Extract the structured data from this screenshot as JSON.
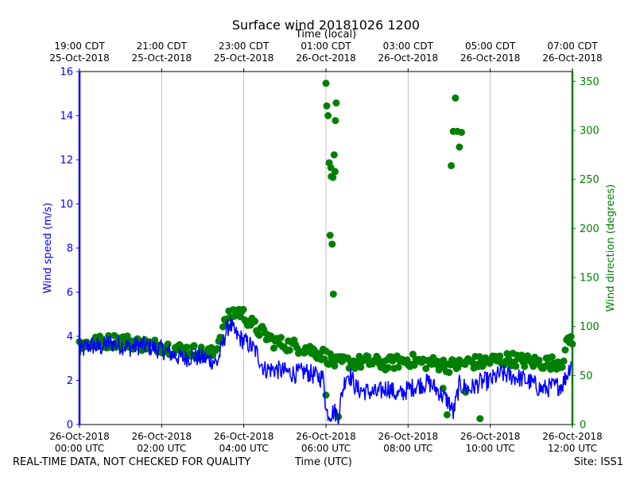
{
  "chart_data": {
    "type": "line+scatter",
    "title": "Surface wind 20181026 1200",
    "xlabel": "Time (UTC)",
    "top_axis_label": "Time (local)",
    "ylabel_left": "Wind speed (m/s)",
    "ylabel_right": "Wind direction (degrees)",
    "x_range_hours_utc": [
      0,
      12
    ],
    "ylim_left": [
      0,
      16
    ],
    "ylim_right": [
      0,
      360
    ],
    "grid": "vertical",
    "colors": {
      "speed": "#0000ff",
      "direction": "#008000",
      "grid": "#b0b0b0",
      "frame": "#000000"
    },
    "bottom_ticks": [
      {
        "hour": 0,
        "line1": "26-Oct-2018",
        "line2": "00:00 UTC"
      },
      {
        "hour": 2,
        "line1": "26-Oct-2018",
        "line2": "02:00 UTC"
      },
      {
        "hour": 4,
        "line1": "26-Oct-2018",
        "line2": "04:00 UTC"
      },
      {
        "hour": 6,
        "line1": "26-Oct-2018",
        "line2": "06:00 UTC"
      },
      {
        "hour": 8,
        "line1": "26-Oct-2018",
        "line2": "08:00 UTC"
      },
      {
        "hour": 10,
        "line1": "26-Oct-2018",
        "line2": "10:00 UTC"
      },
      {
        "hour": 12,
        "line1": "26-Oct-2018",
        "line2": "12:00 UTC"
      }
    ],
    "top_ticks": [
      {
        "hour": 0,
        "line1": "19:00 CDT",
        "line2": "25-Oct-2018"
      },
      {
        "hour": 2,
        "line1": "21:00 CDT",
        "line2": "25-Oct-2018"
      },
      {
        "hour": 4,
        "line1": "23:00 CDT",
        "line2": "25-Oct-2018"
      },
      {
        "hour": 6,
        "line1": "01:00 CDT",
        "line2": "26-Oct-2018"
      },
      {
        "hour": 8,
        "line1": "03:00 CDT",
        "line2": "26-Oct-2018"
      },
      {
        "hour": 10,
        "line1": "05:00 CDT",
        "line2": "26-Oct-2018"
      },
      {
        "hour": 12,
        "line1": "07:00 CDT",
        "line2": "26-Oct-2018"
      }
    ],
    "left_ticks": [
      0,
      2,
      4,
      6,
      8,
      10,
      12,
      14,
      16
    ],
    "right_ticks": [
      0,
      50,
      100,
      150,
      200,
      250,
      300,
      350
    ],
    "series": [
      {
        "name": "Wind speed (m/s)",
        "axis": "left",
        "style": "line",
        "x_hours": [
          0,
          0.25,
          0.5,
          0.75,
          1.0,
          1.25,
          1.5,
          1.75,
          2.0,
          2.25,
          2.5,
          2.75,
          3.0,
          3.25,
          3.35,
          3.45,
          3.55,
          3.65,
          3.75,
          3.85,
          4.0,
          4.15,
          4.3,
          4.5,
          4.75,
          5.0,
          5.25,
          5.5,
          5.75,
          5.95,
          6.0,
          6.1,
          6.2,
          6.3,
          6.4,
          6.5,
          6.6,
          6.75,
          7.0,
          7.25,
          7.5,
          7.75,
          8.0,
          8.25,
          8.5,
          8.75,
          9.0,
          9.1,
          9.25,
          9.5,
          9.75,
          10.0,
          10.25,
          10.5,
          10.75,
          11.0,
          11.25,
          11.5,
          11.75,
          11.9,
          12.0
        ],
        "values": [
          3.3,
          3.6,
          3.5,
          3.7,
          3.6,
          3.5,
          3.6,
          3.5,
          3.4,
          3.2,
          3.0,
          3.1,
          3.0,
          2.9,
          2.8,
          3.4,
          4.1,
          4.6,
          4.2,
          4.0,
          3.8,
          3.6,
          3.3,
          2.5,
          2.5,
          2.4,
          2.3,
          2.4,
          2.2,
          2.1,
          0.6,
          0.5,
          0.6,
          0.4,
          1.5,
          2.3,
          2.2,
          1.6,
          1.5,
          1.4,
          1.7,
          1.3,
          1.6,
          1.8,
          1.9,
          1.5,
          1.0,
          0.5,
          1.8,
          1.6,
          1.9,
          2.0,
          2.3,
          2.2,
          2.1,
          1.9,
          1.6,
          1.7,
          1.8,
          2.4,
          3.1
        ]
      },
      {
        "name": "Wind direction (degrees)",
        "axis": "right",
        "style": "markers",
        "x_hours": [
          0,
          0.25,
          0.5,
          0.75,
          1.0,
          1.25,
          1.5,
          1.75,
          2.0,
          2.25,
          2.5,
          2.75,
          3.0,
          3.25,
          3.45,
          3.55,
          3.65,
          3.75,
          3.85,
          4.0,
          4.25,
          4.5,
          4.75,
          5.0,
          5.25,
          5.5,
          5.75,
          5.9,
          6.0,
          6.25,
          6.5,
          6.75,
          7.0,
          7.25,
          7.5,
          7.75,
          8.0,
          8.25,
          8.5,
          8.75,
          9.0,
          9.25,
          9.5,
          9.75,
          10.0,
          10.25,
          10.5,
          10.75,
          11.0,
          11.25,
          11.5,
          11.75,
          11.9,
          12.0,
          6.0,
          6.02,
          6.05,
          6.08,
          6.1,
          6.12,
          6.13,
          6.15,
          6.17,
          6.18,
          6.2,
          6.22,
          6.23,
          6.25,
          6.0,
          6.3,
          9.05,
          9.1,
          9.15,
          9.2,
          9.25,
          9.3,
          9.4,
          8.85,
          8.95,
          9.4,
          9.75
        ],
        "values": [
          82,
          83,
          84,
          85,
          86,
          84,
          82,
          81,
          80,
          78,
          76,
          75,
          73,
          72,
          92,
          104,
          110,
          114,
          116,
          112,
          100,
          92,
          84,
          82,
          80,
          78,
          74,
          72,
          70,
          62,
          64,
          63,
          64,
          63,
          62,
          64,
          66,
          64,
          63,
          62,
          60,
          61,
          64,
          63,
          65,
          66,
          67,
          65,
          64,
          63,
          63,
          64,
          86,
          88,
          348,
          325,
          315,
          267,
          193,
          262,
          253,
          184,
          252,
          133,
          275,
          258,
          310,
          328,
          30,
          8,
          264,
          299,
          333,
          299,
          283,
          298,
          35,
          37,
          10,
          33,
          6
        ]
      }
    ]
  },
  "footer": {
    "left": "REAL-TIME DATA, NOT CHECKED FOR QUALITY",
    "center": "Time (UTC)",
    "right": "Site: ISS1"
  }
}
